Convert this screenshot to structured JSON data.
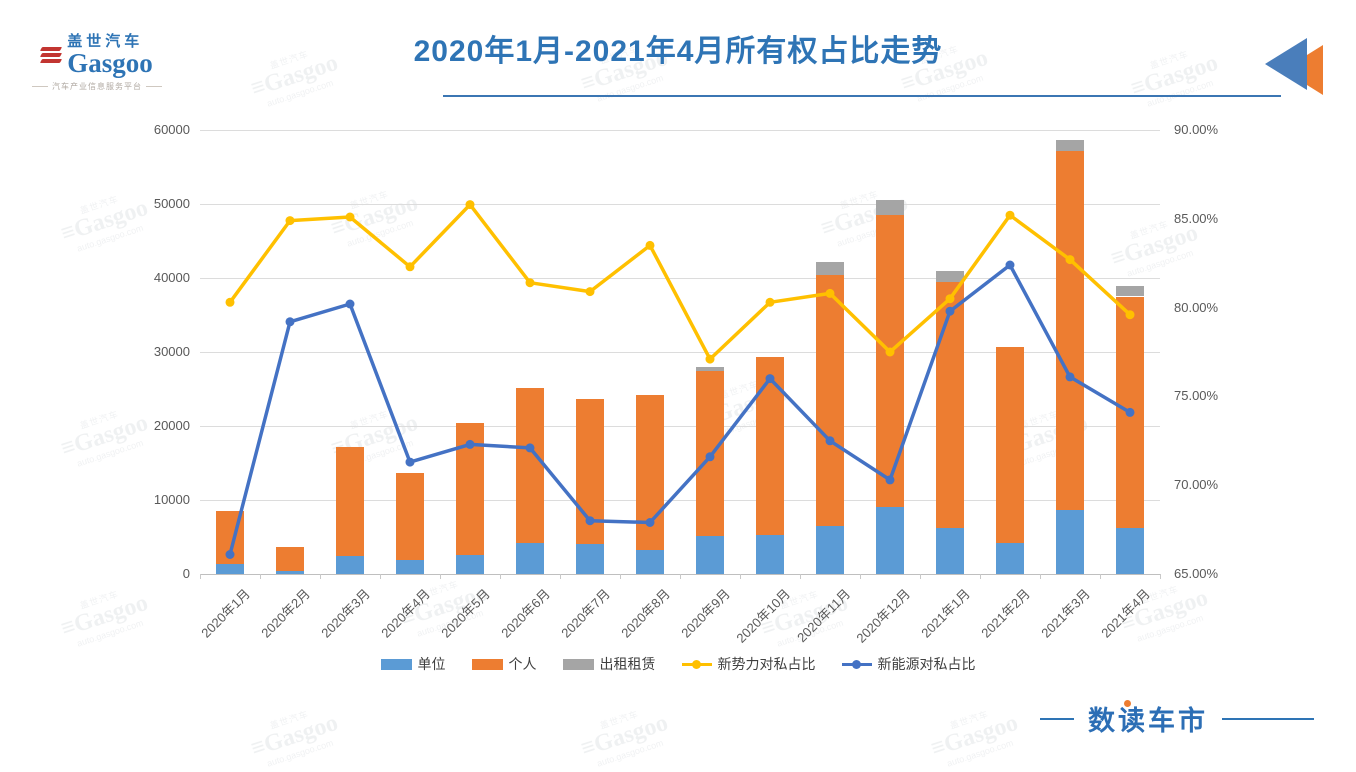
{
  "header": {
    "logo": {
      "cn": "盖世汽车",
      "en": "Gasgoo",
      "tagline": "汽车产业信息服务平台"
    },
    "title": "2020年1月-2021年4月所有权占比走势"
  },
  "footer": {
    "logo": "数读车市"
  },
  "watermark": {
    "top": "盖世汽车",
    "main": "Gasgoo",
    "sub": "auto.gasgoo.com"
  },
  "colors": {
    "title_blue": "#2e74b5",
    "bar_unit": "#5b9bd5",
    "bar_personal": "#ed7d31",
    "bar_rental": "#a5a5a5",
    "line_newforce": "#ffc000",
    "line_nev": "#4472c4",
    "gridline": "#dcdcdc",
    "axis_text": "#595959"
  },
  "chart_data": {
    "type": "bar",
    "subtype": "stacked-bar-with-lines-combo",
    "title": "2020年1月-2021年4月所有权占比走势",
    "categories": [
      "2020年1月",
      "2020年2月",
      "2020年3月",
      "2020年4月",
      "2020年5月",
      "2020年6月",
      "2020年7月",
      "2020年8月",
      "2020年9月",
      "2020年10月",
      "2020年11月",
      "2020年12月",
      "2021年1月",
      "2021年2月",
      "2021年3月",
      "2021年4月"
    ],
    "series": [
      {
        "name": "单位",
        "type": "bar",
        "axis": "left",
        "color": "#5b9bd5",
        "values": [
          1300,
          400,
          2400,
          1900,
          2600,
          4200,
          4000,
          3300,
          5100,
          5300,
          6500,
          9100,
          6200,
          4200,
          8600,
          6200
        ]
      },
      {
        "name": "个人",
        "type": "bar",
        "axis": "left",
        "color": "#ed7d31",
        "values": [
          7200,
          3200,
          14800,
          11800,
          17800,
          20900,
          19700,
          20900,
          22300,
          24000,
          33900,
          39400,
          33300,
          26500,
          48600,
          31300
        ]
      },
      {
        "name": "出租租赁",
        "type": "bar",
        "axis": "left",
        "color": "#a5a5a5",
        "values": [
          0,
          0,
          0,
          0,
          0,
          0,
          0,
          0,
          550,
          0,
          1700,
          2100,
          1500,
          0,
          1400,
          1400
        ]
      },
      {
        "name": "新势力对私占比",
        "type": "line",
        "axis": "right",
        "color": "#ffc000",
        "values": [
          80.3,
          84.9,
          85.1,
          82.3,
          85.8,
          81.4,
          80.9,
          83.5,
          77.1,
          80.3,
          80.8,
          77.5,
          80.5,
          85.2,
          82.7,
          79.6
        ]
      },
      {
        "name": "新能源对私占比",
        "type": "line",
        "axis": "right",
        "color": "#4472c4",
        "values": [
          66.1,
          79.2,
          80.2,
          71.3,
          72.3,
          72.1,
          68.0,
          67.9,
          71.6,
          76.0,
          72.5,
          70.3,
          79.8,
          82.4,
          76.1,
          74.1
        ]
      }
    ],
    "left_axis": {
      "min": 0,
      "max": 60000,
      "step": 10000,
      "ticks": [
        "0",
        "10000",
        "20000",
        "30000",
        "40000",
        "50000",
        "60000"
      ]
    },
    "right_axis": {
      "min": 65,
      "max": 90,
      "step": 5,
      "ticks": [
        "65.00%",
        "70.00%",
        "75.00%",
        "80.00%",
        "85.00%",
        "90.00%"
      ]
    },
    "grid": "horizontal",
    "legend_position": "bottom"
  }
}
